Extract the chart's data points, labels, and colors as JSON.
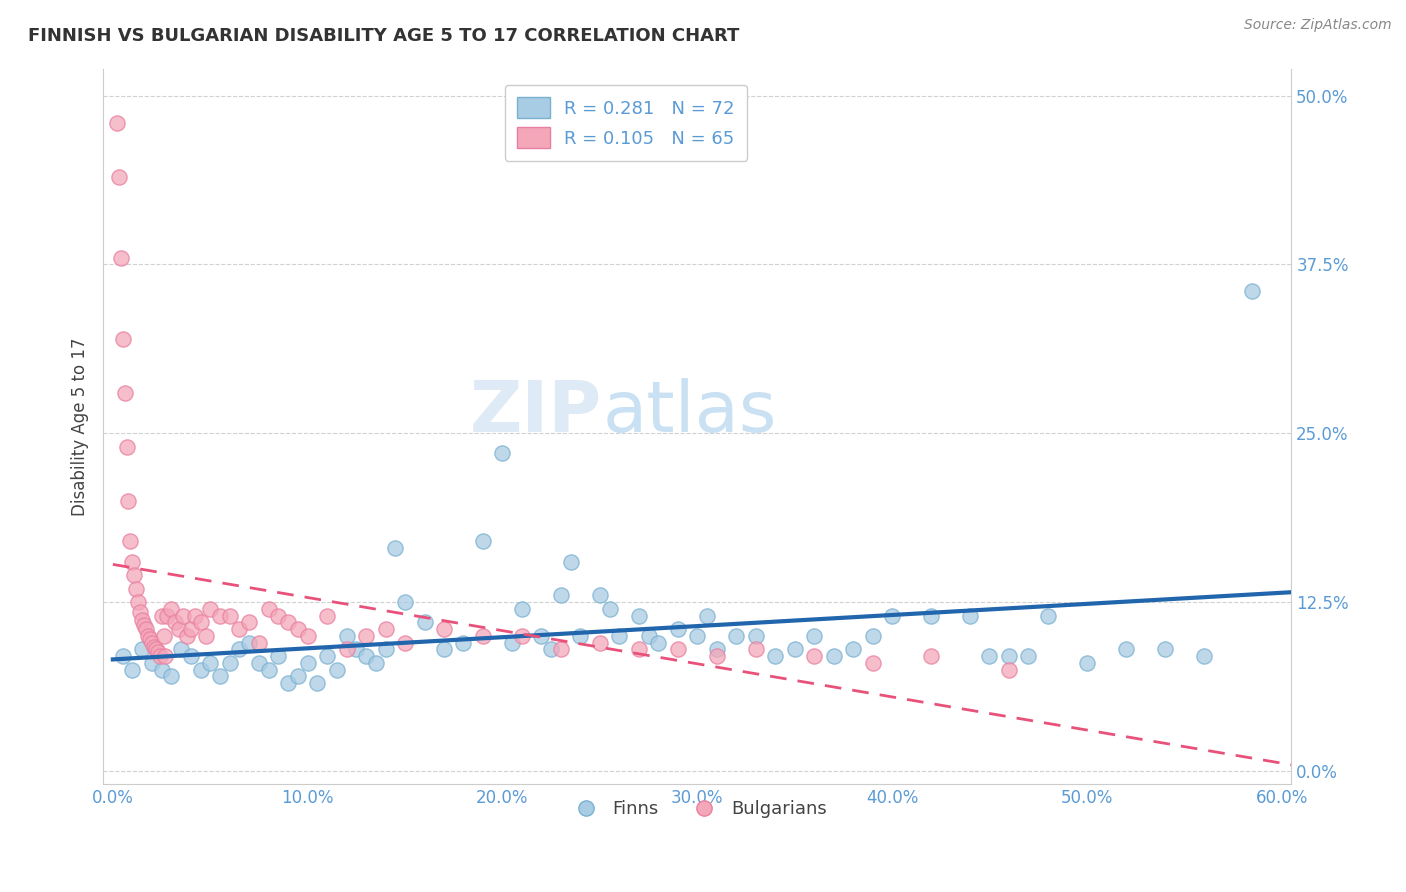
{
  "title": "FINNISH VS BULGARIAN DISABILITY AGE 5 TO 17 CORRELATION CHART",
  "source_text": "Source: ZipAtlas.com",
  "ylabel": "Disability Age 5 to 17",
  "xlim": [
    -0.005,
    0.605
  ],
  "ylim": [
    -0.01,
    0.52
  ],
  "xticks": [
    0.0,
    0.1,
    0.2,
    0.3,
    0.4,
    0.5,
    0.6
  ],
  "xticklabels": [
    "0.0%",
    "10.0%",
    "20.0%",
    "30.0%",
    "40.0%",
    "50.0%",
    "60.0%"
  ],
  "yticks": [
    0.0,
    0.125,
    0.25,
    0.375,
    0.5
  ],
  "yticklabels": [
    "0.0%",
    "12.5%",
    "25.0%",
    "37.5%",
    "50.0%"
  ],
  "finn_color": "#a8cce4",
  "bulg_color": "#f4a7b9",
  "finn_marker_edge": "#7ab0d0",
  "bulg_marker_edge": "#e87fa0",
  "finn_line_color": "#2166ac",
  "bulg_line_color": "#e8527a",
  "legend_R_finn": "0.281",
  "legend_N_finn": "72",
  "legend_R_bulg": "0.105",
  "legend_N_bulg": "65",
  "watermark_zip": "ZIP",
  "watermark_atlas": "atlas",
  "finn_x": [
    0.005,
    0.01,
    0.015,
    0.02,
    0.025,
    0.03,
    0.035,
    0.04,
    0.045,
    0.05,
    0.055,
    0.06,
    0.065,
    0.07,
    0.075,
    0.08,
    0.085,
    0.09,
    0.095,
    0.1,
    0.105,
    0.11,
    0.115,
    0.12,
    0.125,
    0.13,
    0.135,
    0.14,
    0.145,
    0.15,
    0.16,
    0.17,
    0.18,
    0.19,
    0.2,
    0.205,
    0.21,
    0.22,
    0.225,
    0.23,
    0.235,
    0.24,
    0.25,
    0.255,
    0.26,
    0.27,
    0.275,
    0.28,
    0.29,
    0.3,
    0.305,
    0.31,
    0.32,
    0.33,
    0.34,
    0.35,
    0.36,
    0.37,
    0.38,
    0.39,
    0.4,
    0.42,
    0.44,
    0.45,
    0.46,
    0.47,
    0.48,
    0.5,
    0.52,
    0.54,
    0.56,
    0.585
  ],
  "finn_y": [
    0.085,
    0.075,
    0.09,
    0.08,
    0.075,
    0.07,
    0.09,
    0.085,
    0.075,
    0.08,
    0.07,
    0.08,
    0.09,
    0.095,
    0.08,
    0.075,
    0.085,
    0.065,
    0.07,
    0.08,
    0.065,
    0.085,
    0.075,
    0.1,
    0.09,
    0.085,
    0.08,
    0.09,
    0.165,
    0.125,
    0.11,
    0.09,
    0.095,
    0.17,
    0.235,
    0.095,
    0.12,
    0.1,
    0.09,
    0.13,
    0.155,
    0.1,
    0.13,
    0.12,
    0.1,
    0.115,
    0.1,
    0.095,
    0.105,
    0.1,
    0.115,
    0.09,
    0.1,
    0.1,
    0.085,
    0.09,
    0.1,
    0.085,
    0.09,
    0.1,
    0.115,
    0.115,
    0.115,
    0.085,
    0.085,
    0.085,
    0.115,
    0.08,
    0.09,
    0.09,
    0.085,
    0.355
  ],
  "bulg_x": [
    0.002,
    0.003,
    0.004,
    0.005,
    0.006,
    0.007,
    0.008,
    0.009,
    0.01,
    0.011,
    0.012,
    0.013,
    0.014,
    0.015,
    0.016,
    0.017,
    0.018,
    0.019,
    0.02,
    0.021,
    0.022,
    0.023,
    0.024,
    0.025,
    0.026,
    0.027,
    0.028,
    0.03,
    0.032,
    0.034,
    0.036,
    0.038,
    0.04,
    0.042,
    0.045,
    0.048,
    0.05,
    0.055,
    0.06,
    0.065,
    0.07,
    0.075,
    0.08,
    0.085,
    0.09,
    0.095,
    0.1,
    0.11,
    0.12,
    0.13,
    0.14,
    0.15,
    0.17,
    0.19,
    0.21,
    0.23,
    0.25,
    0.27,
    0.29,
    0.31,
    0.33,
    0.36,
    0.39,
    0.42,
    0.46
  ],
  "bulg_y": [
    0.48,
    0.44,
    0.38,
    0.32,
    0.28,
    0.24,
    0.2,
    0.17,
    0.155,
    0.145,
    0.135,
    0.125,
    0.118,
    0.112,
    0.108,
    0.105,
    0.1,
    0.098,
    0.095,
    0.092,
    0.09,
    0.088,
    0.085,
    0.115,
    0.1,
    0.085,
    0.115,
    0.12,
    0.11,
    0.105,
    0.115,
    0.1,
    0.105,
    0.115,
    0.11,
    0.1,
    0.12,
    0.115,
    0.115,
    0.105,
    0.11,
    0.095,
    0.12,
    0.115,
    0.11,
    0.105,
    0.1,
    0.115,
    0.09,
    0.1,
    0.105,
    0.095,
    0.105,
    0.1,
    0.1,
    0.09,
    0.095,
    0.09,
    0.09,
    0.085,
    0.09,
    0.085,
    0.08,
    0.085,
    0.075
  ],
  "background_color": "#ffffff",
  "grid_color": "#cccccc",
  "tick_color": "#5b9bd5",
  "axis_label_color": "#444444",
  "title_color": "#333333",
  "legend_text_color": "#5b9bd5",
  "source_color": "#888888"
}
